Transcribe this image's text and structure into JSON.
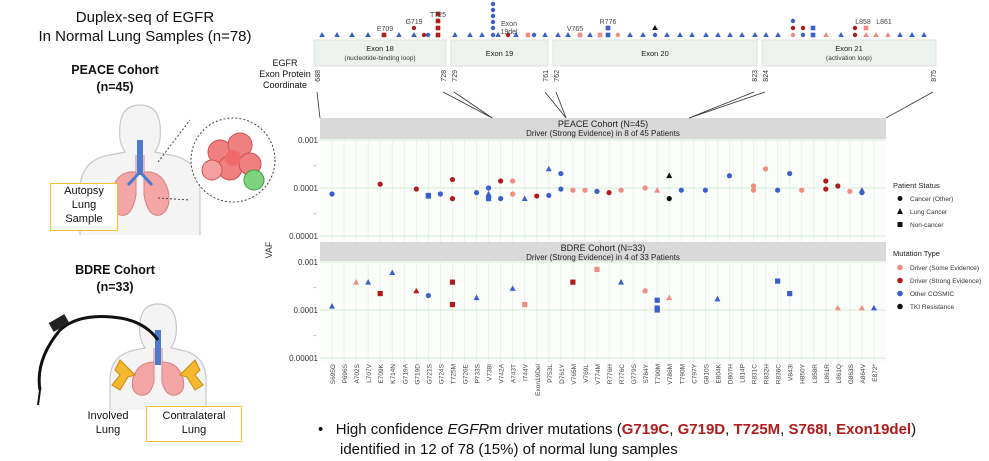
{
  "title": {
    "line1": "Duplex-seq of EGFR",
    "line2": "In Normal Lung Samples (n=78)"
  },
  "peace": {
    "title": "PEACE Cohort",
    "n": "(n=45)",
    "box": [
      "Autopsy",
      "Lung",
      "Sample"
    ]
  },
  "bdre": {
    "title": "BDRE Cohort",
    "n": "(n=33)",
    "involved": [
      "Involved",
      "Lung"
    ],
    "contralateral": [
      "Contralateral",
      "Lung"
    ]
  },
  "coord_label": [
    "EGFR",
    "Exon Protein",
    "Coordinate"
  ],
  "exons": [
    {
      "name": "Exon 18",
      "sub": "(nucleotide-binding loop)",
      "start": "688",
      "end": "728"
    },
    {
      "name": "Exon 19",
      "sub": "",
      "start": "729",
      "end": "761"
    },
    {
      "name": "Exon 20",
      "sub": "",
      "start": "762",
      "end": "823"
    },
    {
      "name": "Exon 21",
      "sub": "(activation loop)",
      "start": "824",
      "end": "875"
    }
  ],
  "top_labels": [
    "E709",
    "G719",
    "T725",
    "Exon 19del",
    "V765",
    "R776",
    "L858",
    "L861"
  ],
  "bullet": {
    "pre": "High confidence ",
    "gene": "EGFR",
    "mid": "m driver mutations (",
    "muts": [
      "G719C",
      "G719D",
      "T725M",
      "S768I",
      "Exon19del"
    ],
    "post": ")",
    "line2": "identified in 12 of 78 (15%) of normal lung samples"
  },
  "colors": {
    "driver_some": "#f08c80",
    "driver_strong": "#b01c1c",
    "other_cosmic": "#3a5fcd",
    "tki": "#111111",
    "panel_header": "#d9d9d9",
    "exon_box": "#eef2ee",
    "grid": "#e4f1e4"
  },
  "chart_data": {
    "type": "scatter",
    "ylabel": "VAF",
    "y_scale": "log10",
    "ylim": [
      1e-05,
      0.001
    ],
    "y_ticks": [
      "0.001",
      "0.0001",
      "0.00001"
    ],
    "categories": [
      "S695G",
      "P696S",
      "A702S",
      "L707V",
      "E709K",
      "K714N",
      "G719A",
      "G719D",
      "G721S",
      "G724S",
      "T725M",
      "G726E",
      "P733S",
      "V738I",
      "V742A",
      "A743T",
      "I744V",
      "Exon19Del",
      "P753L",
      "D761Y",
      "V765M",
      "V769L",
      "V774M",
      "R776H",
      "R776C",
      "G779S",
      "S784Y",
      "T790M",
      "V786M",
      "T790M",
      "C797Y",
      "G810S",
      "E804K",
      "D807H",
      "L814P",
      "R831C",
      "R832H",
      "R836C",
      "V843I",
      "H850Y",
      "L858R",
      "L861R",
      "L861Q",
      "G863S",
      "A864V",
      "E872*"
    ],
    "legend": {
      "patient_status_title": "Patient Status",
      "patient_status": [
        {
          "label": "Cancer (Other)",
          "shape": "circle"
        },
        {
          "label": "Lung Cancer",
          "shape": "triangle"
        },
        {
          "label": "Non-cancer",
          "shape": "square"
        }
      ],
      "mutation_type_title": "Mutation Type",
      "mutation_type": [
        {
          "label": "Driver (Some Evidence)",
          "color": "#f08c80"
        },
        {
          "label": "Driver (Strong Evidence)",
          "color": "#b01c1c"
        },
        {
          "label": "Other COSMIC",
          "color": "#3a5fcd"
        },
        {
          "label": "TKI Resistance",
          "color": "#111111"
        }
      ]
    },
    "panels": [
      {
        "title": "PEACE Cohort (N=45)",
        "subtitle": "Driver (Strong Evidence) in 8 of 45 Patients",
        "points": [
          {
            "cat": 0,
            "vaf": 7.5e-05,
            "type": "other",
            "shape": "circle"
          },
          {
            "cat": 4,
            "vaf": 0.00012,
            "type": "strong",
            "shape": "circle"
          },
          {
            "cat": 7,
            "vaf": 9.5e-05,
            "type": "strong",
            "shape": "circle"
          },
          {
            "cat": 8,
            "vaf": 7e-05,
            "type": "other",
            "shape": "square"
          },
          {
            "cat": 8,
            "vaf": 6.8e-05,
            "type": "other",
            "shape": "square"
          },
          {
            "cat": 9,
            "vaf": 7.5e-05,
            "type": "other",
            "shape": "circle"
          },
          {
            "cat": 10,
            "vaf": 0.00015,
            "type": "strong",
            "shape": "circle"
          },
          {
            "cat": 10,
            "vaf": 6e-05,
            "type": "strong",
            "shape": "circle"
          },
          {
            "cat": 12,
            "vaf": 8e-05,
            "type": "other",
            "shape": "circle"
          },
          {
            "cat": 13,
            "vaf": 0.0001,
            "type": "other",
            "shape": "circle"
          },
          {
            "cat": 13,
            "vaf": 7.5e-05,
            "type": "other",
            "shape": "triangle"
          },
          {
            "cat": 13,
            "vaf": 6.5e-05,
            "type": "other",
            "shape": "circle"
          },
          {
            "cat": 13,
            "vaf": 6e-05,
            "type": "other",
            "shape": "square"
          },
          {
            "cat": 14,
            "vaf": 6e-05,
            "type": "other",
            "shape": "circle"
          },
          {
            "cat": 14,
            "vaf": 0.00014,
            "type": "strong",
            "shape": "circle"
          },
          {
            "cat": 15,
            "vaf": 7.5e-05,
            "type": "some",
            "shape": "circle"
          },
          {
            "cat": 15,
            "vaf": 0.00014,
            "type": "some",
            "shape": "circle"
          },
          {
            "cat": 16,
            "vaf": 6e-05,
            "type": "other",
            "shape": "triangle"
          },
          {
            "cat": 17,
            "vaf": 6.8e-05,
            "type": "strong",
            "shape": "circle"
          },
          {
            "cat": 18,
            "vaf": 0.00025,
            "type": "other",
            "shape": "triangle"
          },
          {
            "cat": 18,
            "vaf": 7e-05,
            "type": "other",
            "shape": "circle"
          },
          {
            "cat": 19,
            "vaf": 0.0002,
            "type": "other",
            "shape": "circle"
          },
          {
            "cat": 19,
            "vaf": 9.5e-05,
            "type": "other",
            "shape": "circle"
          },
          {
            "cat": 20,
            "vaf": 9e-05,
            "type": "some",
            "shape": "circle"
          },
          {
            "cat": 21,
            "vaf": 9e-05,
            "type": "some",
            "shape": "circle"
          },
          {
            "cat": 22,
            "vaf": 8.5e-05,
            "type": "other",
            "shape": "circle"
          },
          {
            "cat": 23,
            "vaf": 8e-05,
            "type": "strong",
            "shape": "circle"
          },
          {
            "cat": 24,
            "vaf": 9e-05,
            "type": "some",
            "shape": "circle"
          },
          {
            "cat": 26,
            "vaf": 0.0001,
            "type": "some",
            "shape": "circle"
          },
          {
            "cat": 27,
            "vaf": 9e-05,
            "type": "some",
            "shape": "triangle"
          },
          {
            "cat": 28,
            "vaf": 0.00018,
            "type": "tki",
            "shape": "triangle"
          },
          {
            "cat": 28,
            "vaf": 6e-05,
            "type": "tki",
            "shape": "circle"
          },
          {
            "cat": 29,
            "vaf": 9e-05,
            "type": "other",
            "shape": "circle"
          },
          {
            "cat": 31,
            "vaf": 9e-05,
            "type": "other",
            "shape": "circle"
          },
          {
            "cat": 33,
            "vaf": 0.00018,
            "type": "other",
            "shape": "circle"
          },
          {
            "cat": 35,
            "vaf": 9e-05,
            "type": "some",
            "shape": "circle"
          },
          {
            "cat": 35,
            "vaf": 0.00011,
            "type": "some",
            "shape": "circle"
          },
          {
            "cat": 36,
            "vaf": 0.00025,
            "type": "some",
            "shape": "circle"
          },
          {
            "cat": 37,
            "vaf": 9e-05,
            "type": "other",
            "shape": "circle"
          },
          {
            "cat": 38,
            "vaf": 0.0002,
            "type": "other",
            "shape": "circle"
          },
          {
            "cat": 39,
            "vaf": 9e-05,
            "type": "some",
            "shape": "circle"
          },
          {
            "cat": 41,
            "vaf": 0.00014,
            "type": "strong",
            "shape": "circle"
          },
          {
            "cat": 41,
            "vaf": 9.5e-05,
            "type": "strong",
            "shape": "circle"
          },
          {
            "cat": 42,
            "vaf": 0.00011,
            "type": "strong",
            "shape": "circle"
          },
          {
            "cat": 43,
            "vaf": 8.5e-05,
            "type": "some",
            "shape": "circle"
          },
          {
            "cat": 44,
            "vaf": 9e-05,
            "type": "other",
            "shape": "triangle"
          },
          {
            "cat": 44,
            "vaf": 8e-05,
            "type": "other",
            "shape": "circle"
          }
        ]
      },
      {
        "title": "BDRE Cohort (N=33)",
        "subtitle": "Driver (Strong Evidence) in 4 of 33 Patients",
        "points": [
          {
            "cat": 0,
            "vaf": 0.00012,
            "type": "other",
            "shape": "triangle"
          },
          {
            "cat": 2,
            "vaf": 0.00038,
            "type": "some",
            "shape": "triangle"
          },
          {
            "cat": 3,
            "vaf": 0.00038,
            "type": "other",
            "shape": "triangle"
          },
          {
            "cat": 4,
            "vaf": 0.00022,
            "type": "strong",
            "shape": "square"
          },
          {
            "cat": 5,
            "vaf": 0.0006,
            "type": "other",
            "shape": "triangle"
          },
          {
            "cat": 7,
            "vaf": 0.00025,
            "type": "strong",
            "shape": "triangle"
          },
          {
            "cat": 8,
            "vaf": 0.0002,
            "type": "other",
            "shape": "circle"
          },
          {
            "cat": 10,
            "vaf": 0.00038,
            "type": "strong",
            "shape": "square"
          },
          {
            "cat": 10,
            "vaf": 0.00013,
            "type": "strong",
            "shape": "square"
          },
          {
            "cat": 12,
            "vaf": 0.00018,
            "type": "other",
            "shape": "triangle"
          },
          {
            "cat": 15,
            "vaf": 0.00028,
            "type": "other",
            "shape": "triangle"
          },
          {
            "cat": 16,
            "vaf": 0.00013,
            "type": "some",
            "shape": "square"
          },
          {
            "cat": 20,
            "vaf": 0.00038,
            "type": "strong",
            "shape": "square"
          },
          {
            "cat": 22,
            "vaf": 0.0007,
            "type": "some",
            "shape": "square"
          },
          {
            "cat": 24,
            "vaf": 0.00038,
            "type": "other",
            "shape": "triangle"
          },
          {
            "cat": 26,
            "vaf": 0.00025,
            "type": "some",
            "shape": "circle"
          },
          {
            "cat": 27,
            "vaf": 0.00016,
            "type": "other",
            "shape": "square"
          },
          {
            "cat": 27,
            "vaf": 0.00011,
            "type": "other",
            "shape": "square"
          },
          {
            "cat": 27,
            "vaf": 0.0001,
            "type": "other",
            "shape": "square"
          },
          {
            "cat": 28,
            "vaf": 0.00018,
            "type": "some",
            "shape": "triangle"
          },
          {
            "cat": 32,
            "vaf": 0.00017,
            "type": "other",
            "shape": "triangle"
          },
          {
            "cat": 37,
            "vaf": 0.0004,
            "type": "other",
            "shape": "square"
          },
          {
            "cat": 38,
            "vaf": 0.00022,
            "type": "other",
            "shape": "square"
          },
          {
            "cat": 42,
            "vaf": 0.00011,
            "type": "some",
            "shape": "triangle"
          },
          {
            "cat": 44,
            "vaf": 0.00011,
            "type": "some",
            "shape": "triangle"
          },
          {
            "cat": 45,
            "vaf": 0.00011,
            "type": "other",
            "shape": "triangle"
          }
        ]
      }
    ]
  }
}
